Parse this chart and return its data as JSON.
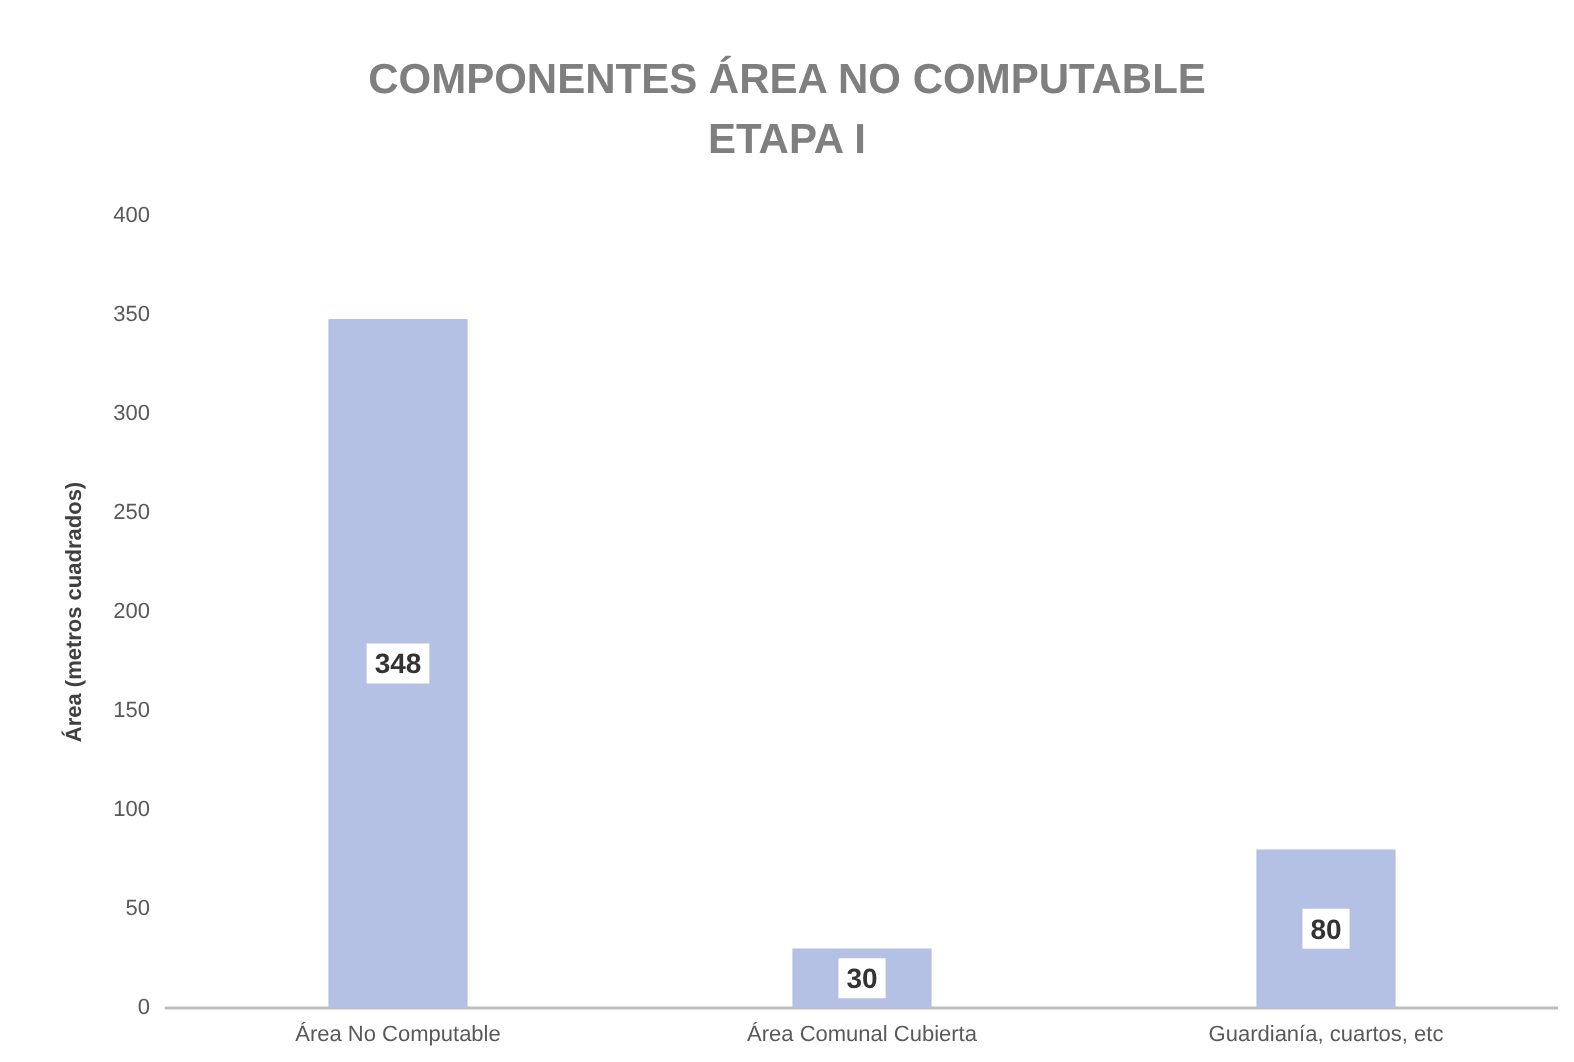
{
  "chart_data": {
    "type": "bar",
    "title": "COMPONENTES ÁREA NO COMPUTABLE\nETAPA I",
    "ylabel": "Área (metros cuadrados)",
    "categories": [
      "Área No Computable",
      "Área Comunal Cubierta",
      "Guardianía, cuartos, etc"
    ],
    "values": [
      348,
      30,
      80
    ],
    "color": "#b4c0e4",
    "ylim": [
      0,
      400
    ],
    "yticks": [
      0,
      50,
      100,
      150,
      200,
      250,
      300,
      350,
      400
    ],
    "grid": false,
    "data_labels": true
  }
}
